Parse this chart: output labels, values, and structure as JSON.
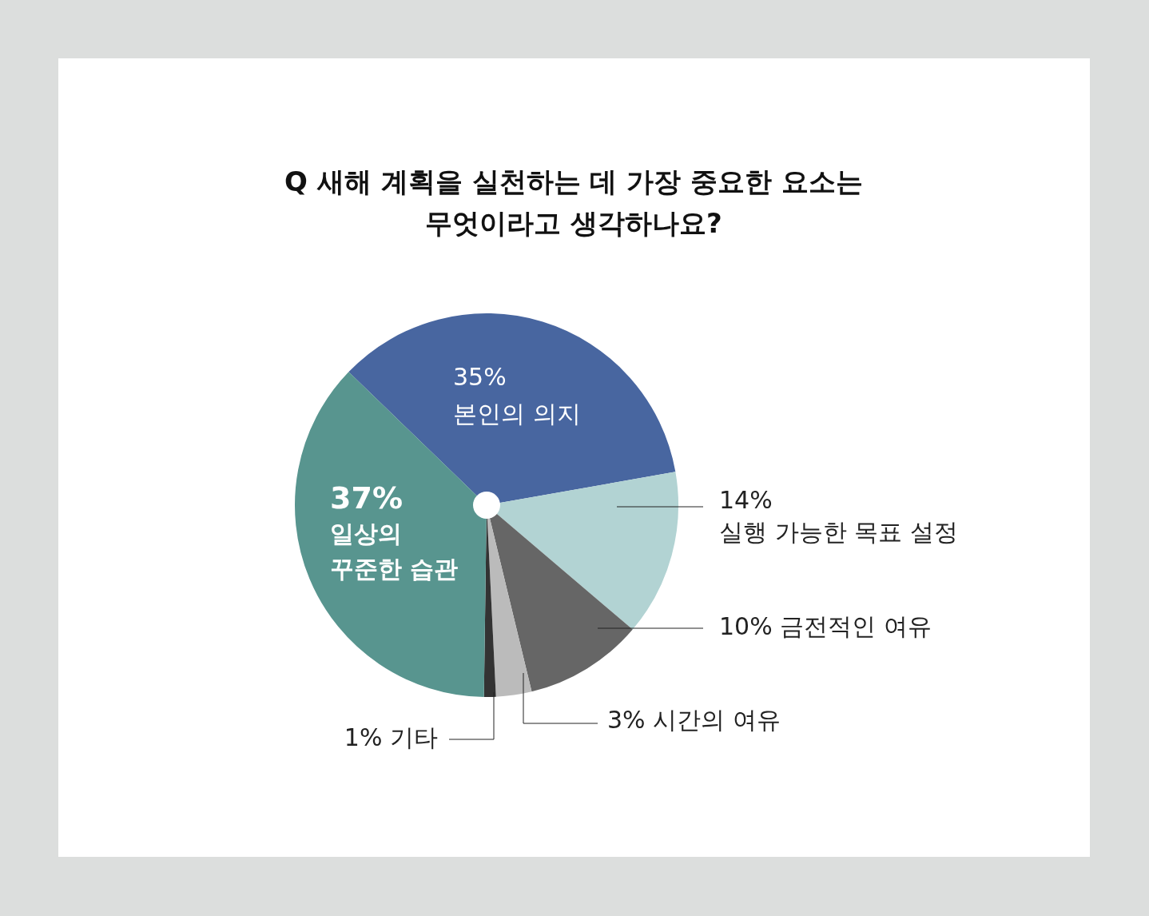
{
  "chart_data": {
    "type": "pie",
    "title": "Q 새해 계획을 실천하는 데 가장 중요한 요소는 무엇이라고 생각하나요?",
    "categories": [
      "본인의 의지",
      "실행 가능한 목표 설정",
      "금전적인 여유",
      "시간의 여유",
      "기타",
      "일상의 꾸준한 습관"
    ],
    "values": [
      35,
      14,
      10,
      3,
      1,
      37
    ],
    "colors": [
      "#4866a0",
      "#b2d3d3",
      "#666666",
      "#bbbbbb",
      "#333333",
      "#58958f"
    ],
    "value_labels": [
      "35%",
      "14%",
      "10%",
      "3%",
      "1%",
      "37%"
    ],
    "legend": false
  }
}
